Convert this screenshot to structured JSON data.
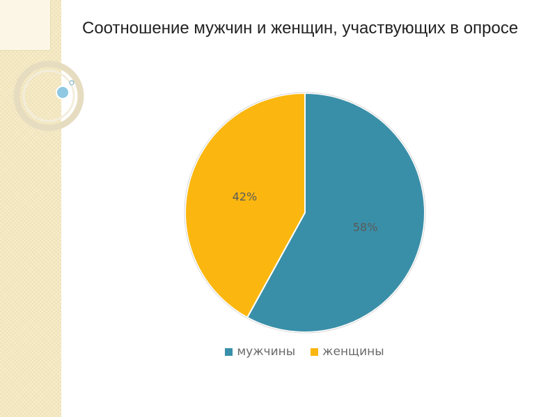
{
  "chart_data": {
    "type": "pie",
    "title": "Соотношение мужчин и женщин, участвующих в опросе",
    "slices": [
      {
        "label": "мужчины",
        "value": 58,
        "display": "58%",
        "color": "#3a8fa8"
      },
      {
        "label": "женщины",
        "value": 42,
        "display": "42%",
        "color": "#fbb70f"
      }
    ],
    "legend_position": "bottom"
  }
}
